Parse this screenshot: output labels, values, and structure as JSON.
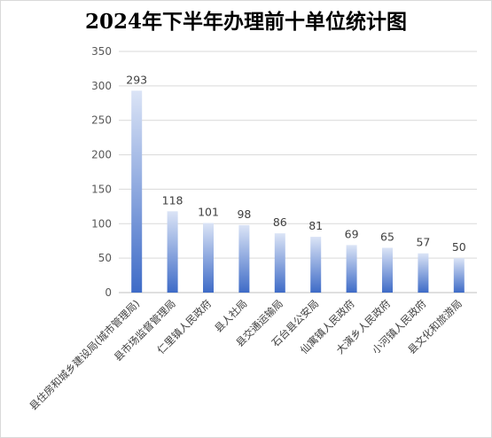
{
  "chart_data": {
    "type": "bar",
    "title": "2024年下半年办理前十单位统计图",
    "categories": [
      "县住房和城乡建设局(城市管理局)",
      "县市场监督管理局",
      "仁里镇人民政府",
      "县人社局",
      "县交通运输局",
      "石台县公安局",
      "仙寓镇人民政府",
      "大演乡人民政府",
      "小河镇人民政府",
      "县文化和旅游局"
    ],
    "values": [
      293,
      118,
      101,
      98,
      86,
      81,
      69,
      65,
      57,
      50
    ],
    "ylim": [
      0,
      350
    ],
    "yticks": [
      0,
      50,
      100,
      150,
      200,
      250,
      300,
      350
    ],
    "grid": true,
    "legend": "none",
    "data_labels": true,
    "colors": {
      "bar_top": "#dbe4f6",
      "bar_bottom": "#3e6bc7",
      "grid": "#d9d9d9",
      "axis": "#bfbfbf"
    }
  }
}
